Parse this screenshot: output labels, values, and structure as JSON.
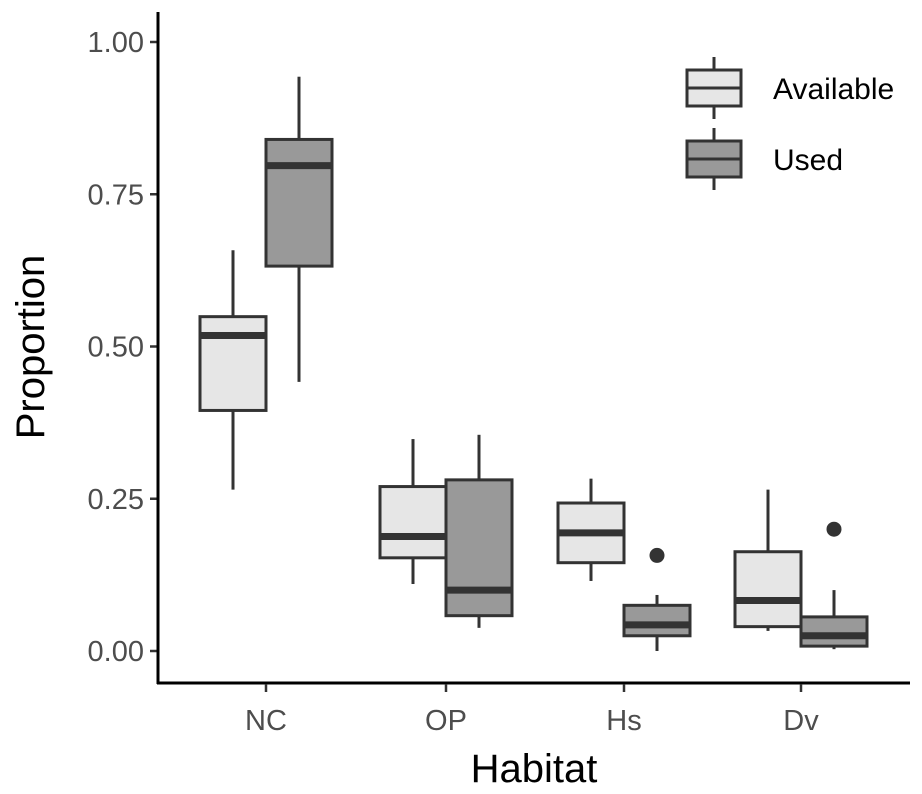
{
  "chart_data": {
    "type": "boxplot",
    "title": "",
    "xlabel": "Habitat",
    "ylabel": "Proportion",
    "ylim": [
      -0.05,
      1.05
    ],
    "yticks": [
      {
        "value": 0.0,
        "label": "0.00"
      },
      {
        "value": 0.25,
        "label": "0.25"
      },
      {
        "value": 0.5,
        "label": "0.50"
      },
      {
        "value": 0.75,
        "label": "0.75"
      },
      {
        "value": 1.0,
        "label": "1.00"
      }
    ],
    "categories": [
      "NC",
      "OP",
      "Hs",
      "Dv"
    ],
    "legend": {
      "position": "top-right"
    },
    "series": [
      {
        "name": "Available",
        "color": "#e6e6e6",
        "boxes": [
          {
            "min": 0.265,
            "q1": 0.395,
            "median": 0.518,
            "q3": 0.549,
            "max": 0.658,
            "outliers": []
          },
          {
            "min": 0.11,
            "q1": 0.153,
            "median": 0.188,
            "q3": 0.27,
            "max": 0.348,
            "outliers": []
          },
          {
            "min": 0.115,
            "q1": 0.145,
            "median": 0.194,
            "q3": 0.243,
            "max": 0.283,
            "outliers": []
          },
          {
            "min": 0.033,
            "q1": 0.04,
            "median": 0.083,
            "q3": 0.163,
            "max": 0.265,
            "outliers": []
          }
        ]
      },
      {
        "name": "Used",
        "color": "#999999",
        "boxes": [
          {
            "min": 0.442,
            "q1": 0.632,
            "median": 0.797,
            "q3": 0.84,
            "max": 0.943,
            "outliers": []
          },
          {
            "min": 0.038,
            "q1": 0.058,
            "median": 0.1,
            "q3": 0.281,
            "max": 0.355,
            "outliers": []
          },
          {
            "min": 0.0,
            "q1": 0.025,
            "median": 0.043,
            "q3": 0.075,
            "max": 0.092,
            "outliers": [
              0.157
            ]
          },
          {
            "min": 0.003,
            "q1": 0.008,
            "median": 0.025,
            "q3": 0.056,
            "max": 0.1,
            "outliers": [
              0.2
            ]
          }
        ]
      }
    ]
  }
}
